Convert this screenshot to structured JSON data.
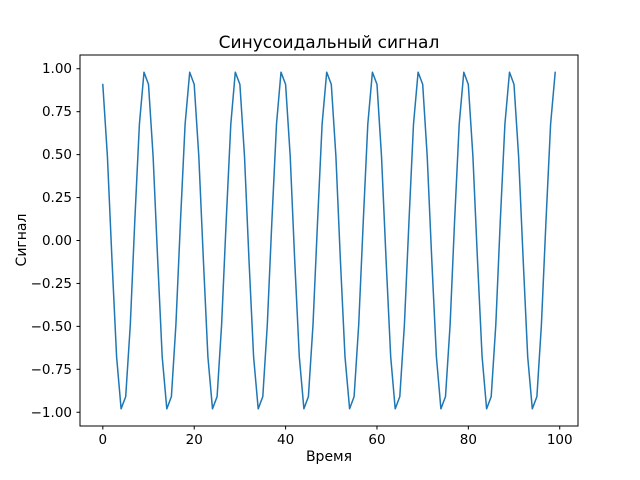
{
  "figure": {
    "background": "#ffffff"
  },
  "chart_data": {
    "type": "line",
    "title": "Синусоидальный сигнал",
    "xlabel": "Время",
    "ylabel": "Сигнал",
    "line_color": "#1f77b4",
    "grid": false,
    "legend": null,
    "xlim": [
      -5,
      104
    ],
    "ylim": [
      -1.08,
      1.08
    ],
    "x_ticks": [
      {
        "value": 0,
        "label": "0"
      },
      {
        "value": 20,
        "label": "20"
      },
      {
        "value": 40,
        "label": "40"
      },
      {
        "value": 60,
        "label": "60"
      },
      {
        "value": 80,
        "label": "80"
      },
      {
        "value": 100,
        "label": "100"
      }
    ],
    "y_ticks": [
      {
        "value": 1.0,
        "label": "1.00"
      },
      {
        "value": 0.75,
        "label": "0.75"
      },
      {
        "value": 0.5,
        "label": "0.50"
      },
      {
        "value": 0.25,
        "label": "0.25"
      },
      {
        "value": 0.0,
        "label": "0.00"
      },
      {
        "value": -0.25,
        "label": "−0.25"
      },
      {
        "value": -0.5,
        "label": "−0.50"
      },
      {
        "value": -0.75,
        "label": "−0.75"
      },
      {
        "value": -1.0,
        "label": "−1.00"
      }
    ],
    "x": [
      0,
      1,
      2,
      3,
      4,
      5,
      6,
      7,
      8,
      9,
      10,
      11,
      12,
      13,
      14,
      15,
      16,
      17,
      18,
      19,
      20,
      21,
      22,
      23,
      24,
      25,
      26,
      27,
      28,
      29,
      30,
      31,
      32,
      33,
      34,
      35,
      36,
      37,
      38,
      39,
      40,
      41,
      42,
      43,
      44,
      45,
      46,
      47,
      48,
      49,
      50,
      51,
      52,
      53,
      54,
      55,
      56,
      57,
      58,
      59,
      60,
      61,
      62,
      63,
      64,
      65,
      66,
      67,
      68,
      69,
      70,
      71,
      72,
      73,
      74,
      75,
      76,
      77,
      78,
      79,
      80,
      81,
      82,
      83,
      84,
      85,
      86,
      87,
      88,
      89,
      90,
      91,
      92,
      93,
      94,
      95,
      96,
      97,
      98,
      99
    ],
    "y": [
      0.909,
      0.491,
      -0.115,
      -0.677,
      -0.98,
      -0.909,
      -0.491,
      0.115,
      0.677,
      0.98,
      0.909,
      0.491,
      -0.115,
      -0.677,
      -0.98,
      -0.909,
      -0.491,
      0.115,
      0.677,
      0.98,
      0.909,
      0.491,
      -0.115,
      -0.677,
      -0.98,
      -0.909,
      -0.491,
      0.115,
      0.677,
      0.98,
      0.909,
      0.491,
      -0.115,
      -0.677,
      -0.98,
      -0.909,
      -0.491,
      0.115,
      0.677,
      0.98,
      0.909,
      0.491,
      -0.115,
      -0.677,
      -0.98,
      -0.909,
      -0.491,
      0.115,
      0.677,
      0.98,
      0.909,
      0.491,
      -0.115,
      -0.677,
      -0.98,
      -0.909,
      -0.491,
      0.115,
      0.677,
      0.98,
      0.909,
      0.491,
      -0.115,
      -0.677,
      -0.98,
      -0.909,
      -0.491,
      0.115,
      0.677,
      0.98,
      0.909,
      0.491,
      -0.115,
      -0.677,
      -0.98,
      -0.909,
      -0.491,
      0.115,
      0.677,
      0.98,
      0.909,
      0.491,
      -0.115,
      -0.677,
      -0.98,
      -0.909,
      -0.491,
      0.115,
      0.677,
      0.98,
      0.909,
      0.491,
      -0.115,
      -0.677,
      -0.98,
      -0.909,
      -0.491,
      0.115,
      0.677,
      0.98
    ]
  }
}
